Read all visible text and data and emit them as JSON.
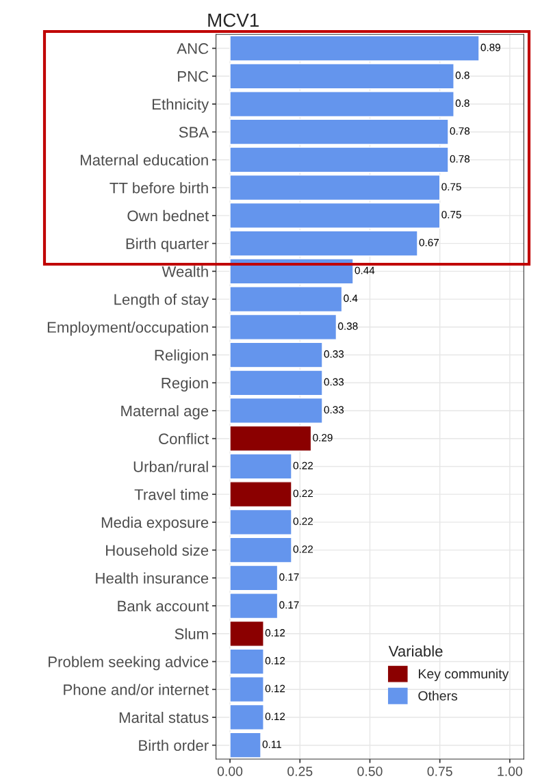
{
  "chart_data": {
    "type": "bar",
    "orientation": "horizontal",
    "title": "MCV1",
    "categories": [
      "ANC",
      "PNC",
      "Ethnicity",
      "SBA",
      "Maternal education",
      "TT before birth",
      "Own bednet",
      "Birth quarter",
      "Wealth",
      "Length of stay",
      "Employment/occupation",
      "Religion",
      "Region",
      "Maternal age",
      "Conflict",
      "Urban/rural",
      "Travel time",
      "Media exposure",
      "Household size",
      "Health insurance",
      "Bank account",
      "Slum",
      "Problem seeking advice",
      "Phone and/or internet",
      "Marital status",
      "Birth order"
    ],
    "series": [
      {
        "name": "Key community",
        "color": "#8b0000",
        "values": [
          null,
          null,
          null,
          null,
          null,
          null,
          null,
          null,
          null,
          null,
          null,
          null,
          null,
          null,
          0.29,
          null,
          0.22,
          null,
          null,
          null,
          null,
          0.12,
          null,
          null,
          null,
          null
        ]
      },
      {
        "name": "Others",
        "color": "#6495ed",
        "values": [
          0.89,
          0.8,
          0.8,
          0.78,
          0.78,
          0.75,
          0.75,
          0.67,
          0.44,
          0.4,
          0.38,
          0.33,
          0.33,
          0.33,
          null,
          0.22,
          null,
          0.22,
          0.22,
          0.17,
          0.17,
          null,
          0.12,
          0.12,
          0.12,
          0.11
        ]
      }
    ],
    "xlim": [
      -0.05,
      1.05
    ],
    "xticks": [
      {
        "value": 0,
        "label": "0.00"
      },
      {
        "value": 0.25,
        "label": "0.25"
      },
      {
        "value": 0.5,
        "label": "0.50"
      },
      {
        "value": 0.75,
        "label": "0.75"
      },
      {
        "value": 1,
        "label": "1.00"
      }
    ],
    "data_labels": true,
    "grid": true,
    "legend": "bottom right",
    "legend_title": "Variable"
  }
}
